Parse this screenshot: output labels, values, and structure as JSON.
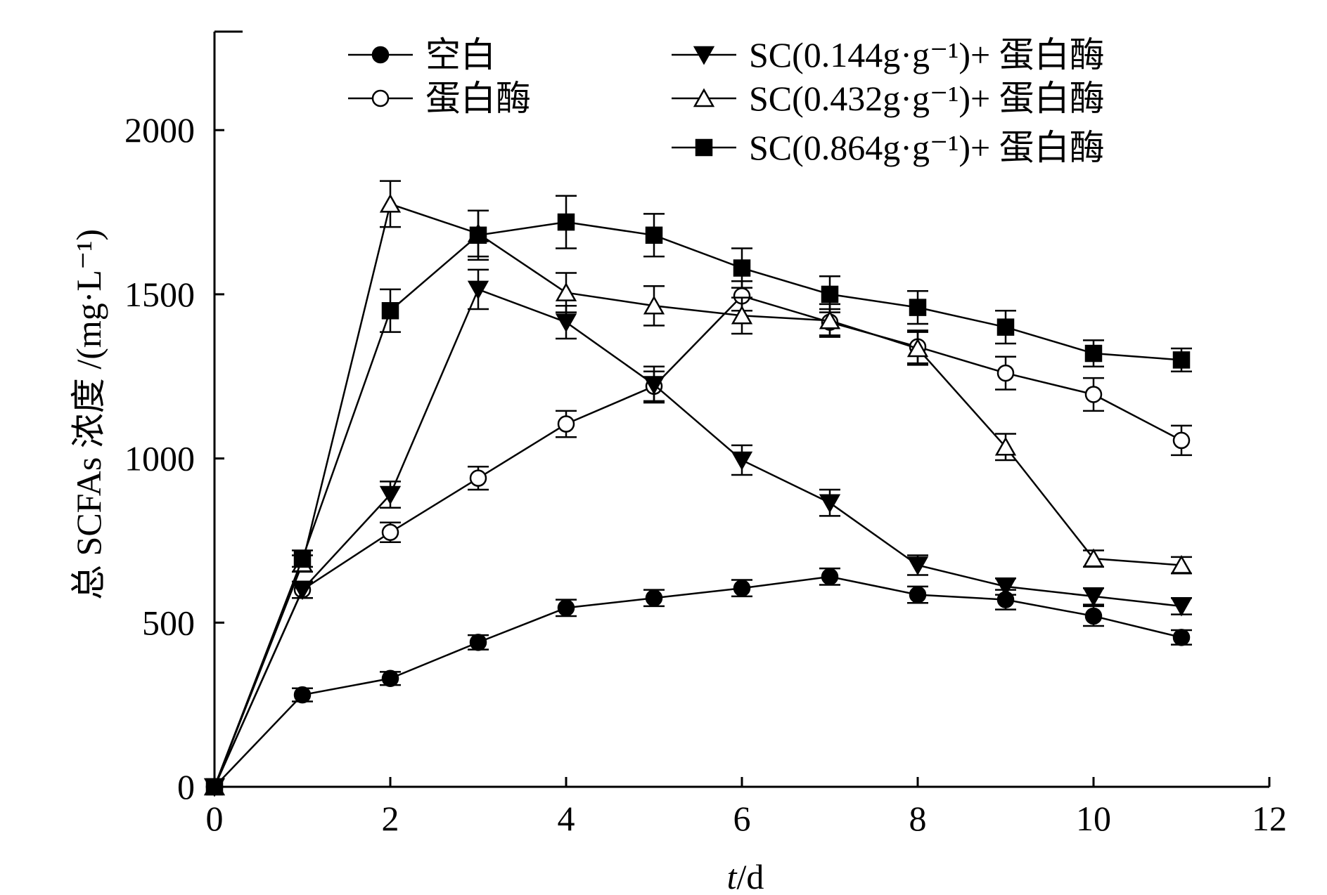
{
  "chart_data": {
    "type": "line",
    "xlabel_italic": "t",
    "xlabel_rest": "/d",
    "ylabel": "总 SCFAs 浓度 /(mg·L⁻¹)",
    "xlim": [
      0,
      12
    ],
    "ylim": [
      0,
      2300
    ],
    "xticks": [
      0,
      2,
      4,
      6,
      8,
      10,
      12
    ],
    "yticks": [
      0,
      500,
      1000,
      1500,
      2000
    ],
    "grid": false,
    "legend_placement": "top",
    "series": [
      {
        "name": "空白",
        "marker": "circle-filled",
        "x": [
          0,
          1,
          2,
          3,
          4,
          5,
          6,
          7,
          8,
          9,
          10,
          11
        ],
        "y": [
          0,
          280,
          330,
          440,
          545,
          575,
          605,
          640,
          585,
          570,
          520,
          455
        ],
        "err": [
          0,
          20,
          20,
          22,
          25,
          25,
          25,
          25,
          25,
          30,
          30,
          22
        ]
      },
      {
        "name": "蛋白酶",
        "marker": "circle-open",
        "x": [
          0,
          1,
          2,
          3,
          4,
          5,
          6,
          7,
          8,
          9,
          10,
          11
        ],
        "y": [
          0,
          600,
          775,
          940,
          1105,
          1220,
          1495,
          1415,
          1340,
          1260,
          1195,
          1055
        ],
        "err": [
          0,
          25,
          30,
          35,
          40,
          45,
          45,
          40,
          50,
          50,
          50,
          45
        ]
      },
      {
        "name": "SC(0.144g·g⁻¹)+ 蛋白酶",
        "marker": "triangle-down-filled",
        "x": [
          0,
          1,
          2,
          3,
          4,
          5,
          6,
          7,
          8,
          9,
          10,
          11
        ],
        "y": [
          0,
          600,
          890,
          1515,
          1415,
          1225,
          995,
          865,
          675,
          610,
          580,
          550
        ],
        "err": [
          0,
          25,
          40,
          60,
          50,
          55,
          45,
          40,
          30,
          25,
          25,
          25
        ]
      },
      {
        "name": "SC(0.432g·g⁻¹)+ 蛋白酶",
        "marker": "triangle-up-open",
        "x": [
          0,
          1,
          2,
          3,
          4,
          5,
          6,
          7,
          8,
          9,
          10,
          11
        ],
        "y": [
          0,
          680,
          1775,
          1685,
          1505,
          1465,
          1435,
          1420,
          1335,
          1035,
          695,
          675
        ],
        "err": [
          0,
          25,
          70,
          70,
          60,
          60,
          55,
          50,
          50,
          40,
          25,
          25
        ]
      },
      {
        "name": "SC(0.864g·g⁻¹)+ 蛋白酶",
        "marker": "square-filled",
        "x": [
          0,
          1,
          2,
          3,
          4,
          5,
          6,
          7,
          8,
          9,
          10,
          11
        ],
        "y": [
          0,
          695,
          1450,
          1680,
          1720,
          1680,
          1580,
          1500,
          1460,
          1400,
          1320,
          1300
        ],
        "err": [
          0,
          25,
          65,
          75,
          80,
          65,
          60,
          55,
          50,
          50,
          40,
          35
        ]
      }
    ]
  }
}
